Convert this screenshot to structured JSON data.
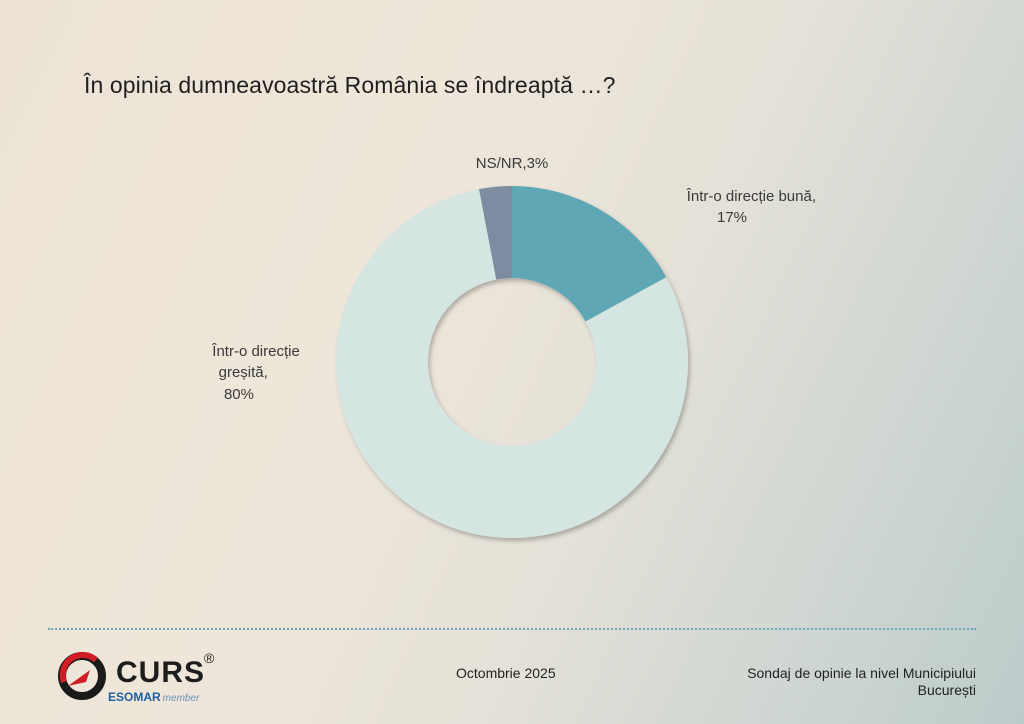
{
  "slide": {
    "title": "În opinia dumneavoastră România se îndreaptă …?",
    "date": "Octombrie 2025",
    "source_line1": "Sondaj de opinie la nivel Municipiului",
    "source_line2": "București"
  },
  "logo": {
    "name": "CURS",
    "registered": "®",
    "affiliation": "ESOMAR",
    "affiliation_suffix": "member"
  },
  "colors": {
    "good": "#5fa7b5",
    "wrong": "#d5e5e1",
    "nsnr": "#7d8ca0",
    "divider": "#6fa7b9"
  },
  "chart_data": {
    "type": "pie",
    "donut": true,
    "title": "În opinia dumneavoastră România se îndreaptă …?",
    "slices": [
      {
        "label": "Într-o direcție bună",
        "value": 17,
        "display": "17%"
      },
      {
        "label": "Într-o direcție greșită",
        "value": 80,
        "display": "80%"
      },
      {
        "label": "NS/NR",
        "value": 3,
        "display": "3%"
      }
    ]
  }
}
